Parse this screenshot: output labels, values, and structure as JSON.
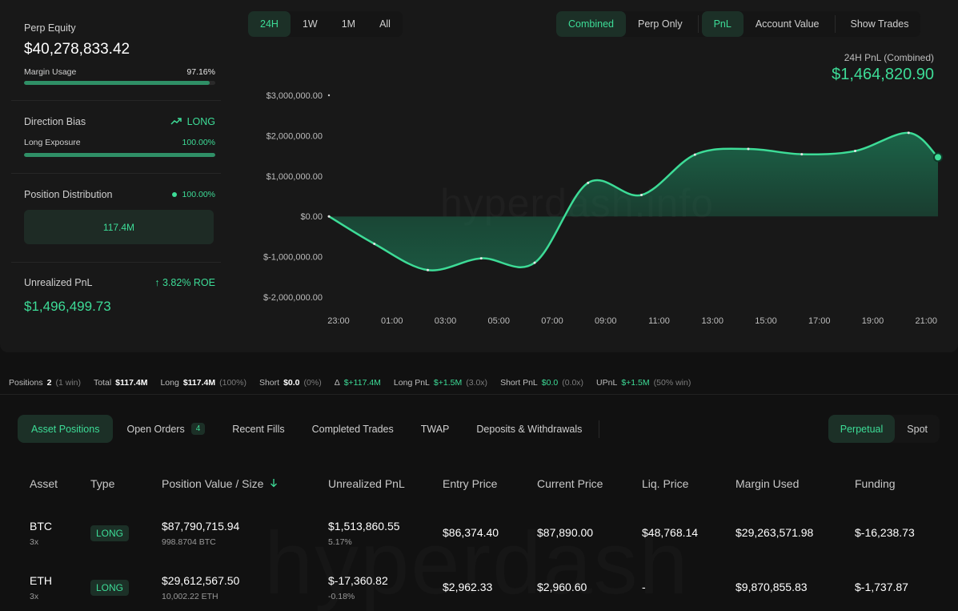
{
  "summary": {
    "perp_equity_label": "Perp Equity",
    "perp_equity_value": "$40,278,833.42",
    "margin_usage_label": "Margin Usage",
    "margin_usage_value": "97.16%",
    "margin_usage_fraction": 0.9716,
    "direction_bias_label": "Direction Bias",
    "direction_bias_value": "LONG",
    "long_exposure_label": "Long Exposure",
    "long_exposure_value": "100.00%",
    "long_exposure_fraction": 1.0,
    "position_distribution_label": "Position Distribution",
    "position_distribution_value": "100.00%",
    "position_distribution_bar": "117.4M",
    "unrealized_pnl_label": "Unrealized PnL",
    "unrealized_pnl_roe": "3.82% ROE",
    "unrealized_pnl_value": "$1,496,499.73"
  },
  "controls": {
    "ranges": [
      "24H",
      "1W",
      "1M",
      "All"
    ],
    "range_active": "24H",
    "views": [
      "Combined",
      "Perp Only"
    ],
    "view_active": "Combined",
    "metrics": [
      "PnL",
      "Account Value"
    ],
    "metric_active": "PnL",
    "show_trades": "Show Trades"
  },
  "pnl_header": {
    "caption": "24H PnL (Combined)",
    "value": "$1,464,820.90"
  },
  "watermark": "hyperdash.info",
  "chart_data": {
    "type": "area",
    "x_ticks": [
      "23:00",
      "01:00",
      "03:00",
      "05:00",
      "07:00",
      "09:00",
      "11:00",
      "13:00",
      "15:00",
      "17:00",
      "19:00",
      "21:00"
    ],
    "y_ticks": [
      3000000,
      2000000,
      1000000,
      0,
      -1000000,
      -2000000
    ],
    "y_tick_labels": [
      "$3,000,000.00",
      "$2,000,000.00",
      "$1,000,000.00",
      "$0.00",
      "$-1,000,000.00",
      "$-2,000,000.00"
    ],
    "ylim": [
      -2000000,
      3000000
    ],
    "x": [
      -0.7,
      1.0,
      3.0,
      5.0,
      7.0,
      9.0,
      11.0,
      13.0,
      15.0,
      17.0,
      19.0,
      21.0,
      22.1
    ],
    "values": [
      0,
      -680000,
      -1330000,
      -1040000,
      -1150000,
      830000,
      530000,
      1530000,
      1670000,
      1540000,
      1620000,
      2070000,
      1465000
    ],
    "line_color": "#3ddc97",
    "fill_color": "#1c6b4d"
  },
  "stats": {
    "positions_label": "Positions",
    "positions_value": "2",
    "positions_note": "(1 win)",
    "total_label": "Total",
    "total_value": "$117.4M",
    "long_label": "Long",
    "long_value": "$117.4M",
    "long_note": "(100%)",
    "short_label": "Short",
    "short_value": "$0.0",
    "short_note": "(0%)",
    "delta_label": "Δ",
    "delta_value": "$+117.4M",
    "long_pnl_label": "Long PnL",
    "long_pnl_value": "$+1.5M",
    "long_pnl_note": "(3.0x)",
    "short_pnl_label": "Short PnL",
    "short_pnl_value": "$0.0",
    "short_pnl_note": "(0.0x)",
    "upnl_label": "UPnL",
    "upnl_value": "$+1.5M",
    "upnl_note": "(50% win)"
  },
  "tabs": {
    "items": [
      "Asset Positions",
      "Open Orders",
      "Recent Fills",
      "Completed Trades",
      "TWAP",
      "Deposits & Withdrawals"
    ],
    "active": "Asset Positions",
    "open_orders_count": "4",
    "market_items": [
      "Perpetual",
      "Spot"
    ],
    "market_active": "Perpetual"
  },
  "table": {
    "headers": [
      "Asset",
      "Type",
      "Position Value / Size",
      "Unrealized PnL",
      "Entry Price",
      "Current Price",
      "Liq. Price",
      "Margin Used",
      "Funding"
    ],
    "rows": [
      {
        "asset": "BTC",
        "leverage": "3x",
        "type": "LONG",
        "value": "$87,790,715.94",
        "size": "998.8704 BTC",
        "upnl": "$1,513,860.55",
        "upnl_pct": "5.17%",
        "entry": "$86,374.40",
        "current": "$87,890.00",
        "liq": "$48,768.14",
        "margin": "$29,263,571.98",
        "funding": "$-16,238.73"
      },
      {
        "asset": "ETH",
        "leverage": "3x",
        "type": "LONG",
        "value": "$29,612,567.50",
        "size": "10,002.22 ETH",
        "upnl": "$-17,360.82",
        "upnl_pct": "-0.18%",
        "entry": "$2,962.33",
        "current": "$2,960.60",
        "liq": "-",
        "margin": "$9,870,855.83",
        "funding": "$-1,737.87"
      }
    ]
  }
}
